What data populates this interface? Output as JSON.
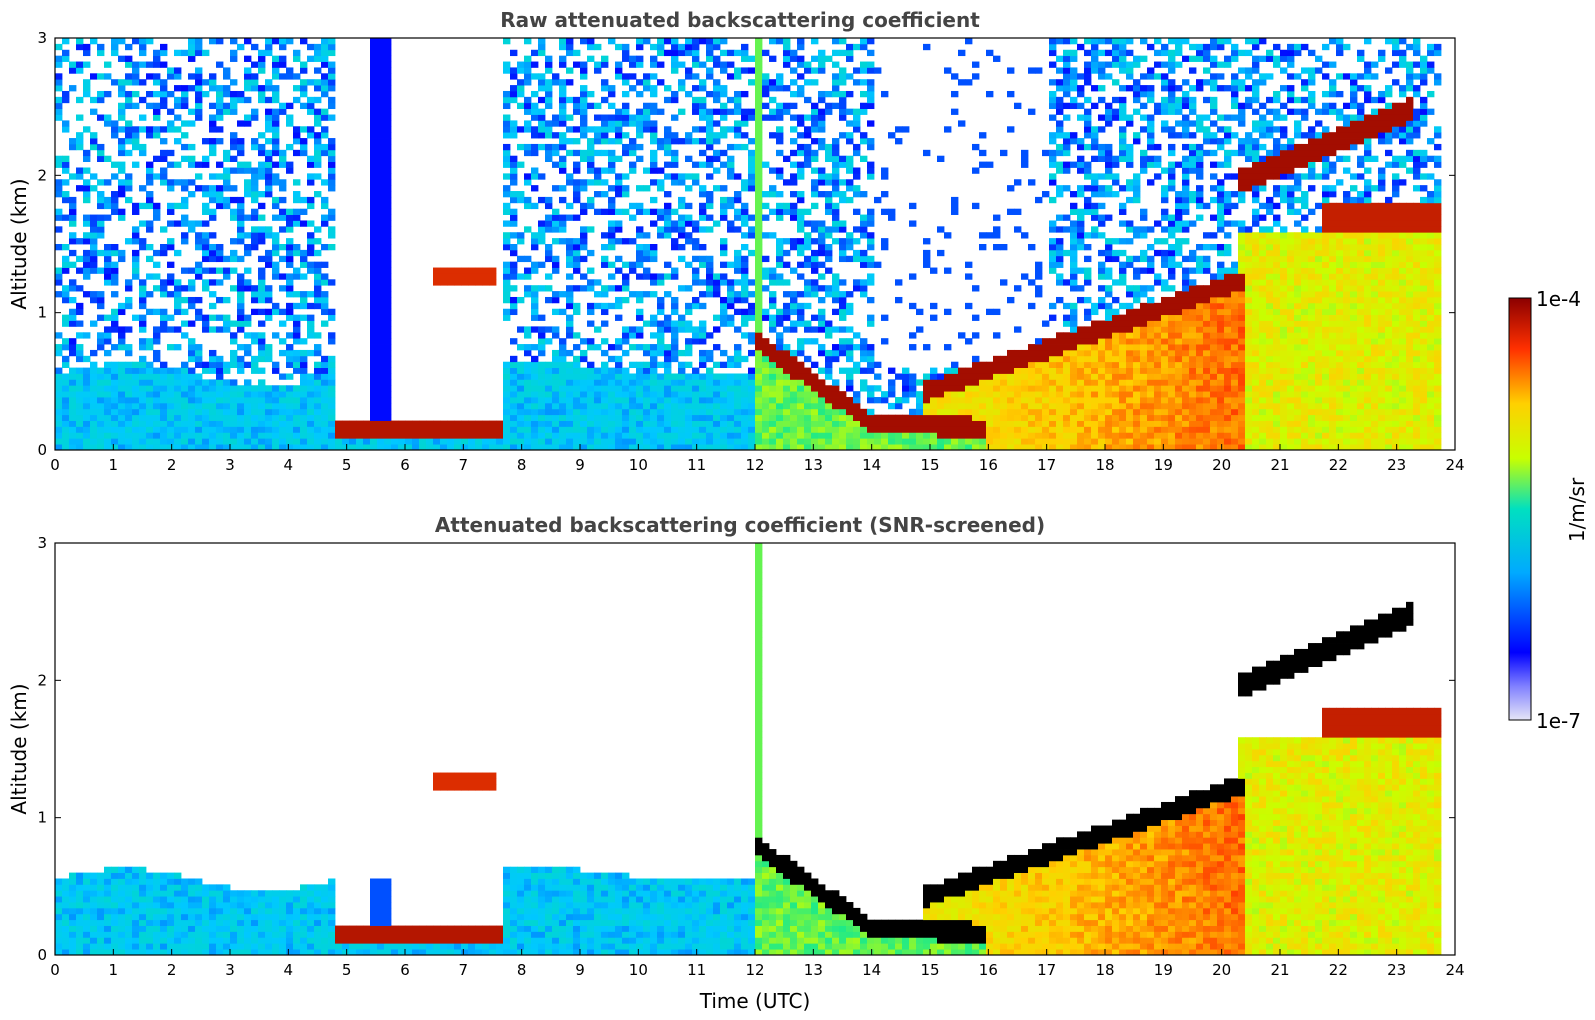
{
  "chart_data": [
    {
      "type": "heatmap",
      "title": "Raw attenuated backscattering coefficient",
      "xlabel": "",
      "ylabel": "Altitude (km)",
      "xlim": [
        0,
        24
      ],
      "ylim": [
        0,
        3
      ],
      "xticks": [
        "0",
        "1",
        "2",
        "3",
        "4",
        "5",
        "6",
        "7",
        "8",
        "9",
        "10",
        "11",
        "12",
        "13",
        "14",
        "15",
        "16",
        "17",
        "18",
        "19",
        "20",
        "21",
        "22",
        "23",
        "24"
      ],
      "yticks": [
        "0",
        "1",
        "2",
        "3"
      ],
      "colorbar": {
        "min_label": "1e-7",
        "max_label": "1e-4",
        "label": "1/m/sr"
      },
      "features": [
        {
          "name": "low cloud / fog layer",
          "x": [
            4.75,
            7.7
          ],
          "y": [
            0.08,
            0.2
          ]
        },
        {
          "name": "thin layer",
          "x": [
            6.5,
            7.6
          ],
          "y": [
            1.18,
            1.32
          ]
        },
        {
          "name": "descending cloud layer",
          "x": [
            12.0,
            15.9
          ],
          "y": [
            0.15,
            0.8
          ]
        },
        {
          "name": "rising cloud-top layer",
          "x": [
            14.9,
            20.4
          ],
          "y": [
            0.4,
            1.3
          ]
        },
        {
          "name": "upper cloud layer",
          "x": [
            20.3,
            23.3
          ],
          "y": [
            1.9,
            2.5
          ]
        },
        {
          "name": "second upper layer",
          "x": [
            21.7,
            23.8
          ],
          "y": [
            1.6,
            1.8
          ]
        }
      ]
    },
    {
      "type": "heatmap",
      "title": "Attenuated backscattering coefficient (SNR-screened)",
      "xlabel": "Time (UTC)",
      "ylabel": "Altitude (km)",
      "xlim": [
        0,
        24
      ],
      "ylim": [
        0,
        3
      ],
      "xticks": [
        "0",
        "1",
        "2",
        "3",
        "4",
        "5",
        "6",
        "7",
        "8",
        "9",
        "10",
        "11",
        "12",
        "13",
        "14",
        "15",
        "16",
        "17",
        "18",
        "19",
        "20",
        "21",
        "22",
        "23",
        "24"
      ],
      "yticks": [
        "0",
        "1",
        "2",
        "3"
      ],
      "colorbar": {
        "min_label": "1e-7",
        "max_label": "1e-4",
        "label": "1/m/sr"
      }
    }
  ],
  "colors": {
    "colormap": [
      "#e6e6f7",
      "#0000ff",
      "#00c8ff",
      "#00e6a0",
      "#c8ff00",
      "#ffd000",
      "#ff4000",
      "#8b0000"
    ],
    "saturated": "#000000"
  }
}
